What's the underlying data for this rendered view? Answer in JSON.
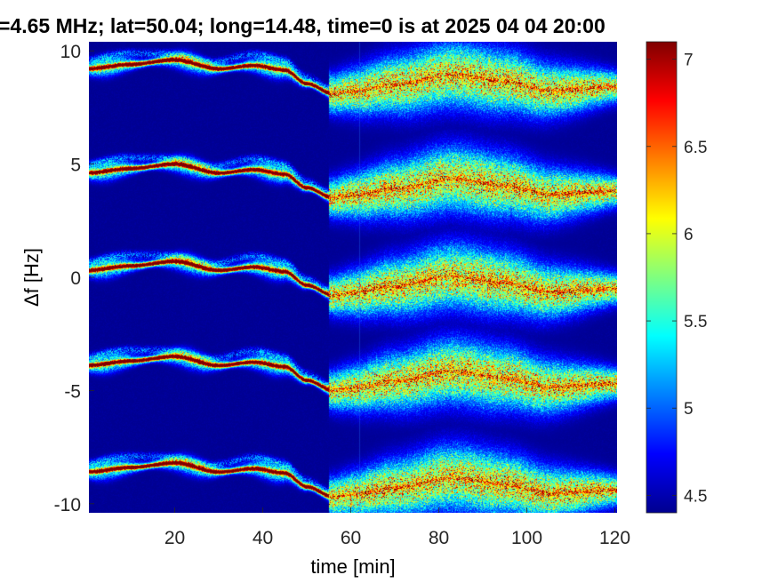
{
  "chart_data": {
    "type": "heatmap",
    "title": "=4.65 MHz;  lat=50.04; long=14.48, time=0 is at 2025 04 04 20:00",
    "xlabel": "time [min]",
    "ylabel": "Δf [Hz]",
    "xlim": [
      0.5,
      120.5
    ],
    "ylim": [
      -10.4,
      10.4
    ],
    "x_ticks": [
      20,
      40,
      60,
      80,
      100,
      120
    ],
    "x_tick_labels": [
      "20",
      "40",
      "60",
      "80",
      "100",
      "120"
    ],
    "y_ticks": [
      -10,
      -5,
      0,
      5,
      10
    ],
    "y_tick_labels": [
      "-10",
      "-5",
      "0",
      "5",
      "10"
    ],
    "colorbar": {
      "colormap": "jet",
      "clim": [
        4.4,
        7.1
      ],
      "ticks": [
        4.5,
        5,
        5.5,
        6,
        6.5,
        7
      ],
      "tick_labels": [
        "4.5",
        "5",
        "5.5",
        "6",
        "6.5",
        "7"
      ]
    },
    "background_level": 4.45,
    "trace_offsets_hz": [
      9.2,
      4.6,
      0.3,
      -3.9,
      -8.6
    ],
    "trace_center_drift_hz": {
      "t": [
        0,
        10,
        20,
        30,
        38,
        45,
        50,
        56,
        60,
        70,
        83,
        95,
        105,
        120
      ],
      "df": [
        0.0,
        0.2,
        0.4,
        0.0,
        0.15,
        -0.05,
        -0.65,
        -1.1,
        -1.0,
        -0.7,
        -0.25,
        -0.55,
        -0.95,
        -0.8
      ]
    },
    "vertical_line_min": 62
  },
  "colors": {
    "background": "#ffffff",
    "axis_text": "#262626",
    "plot_background": "#00008f"
  }
}
